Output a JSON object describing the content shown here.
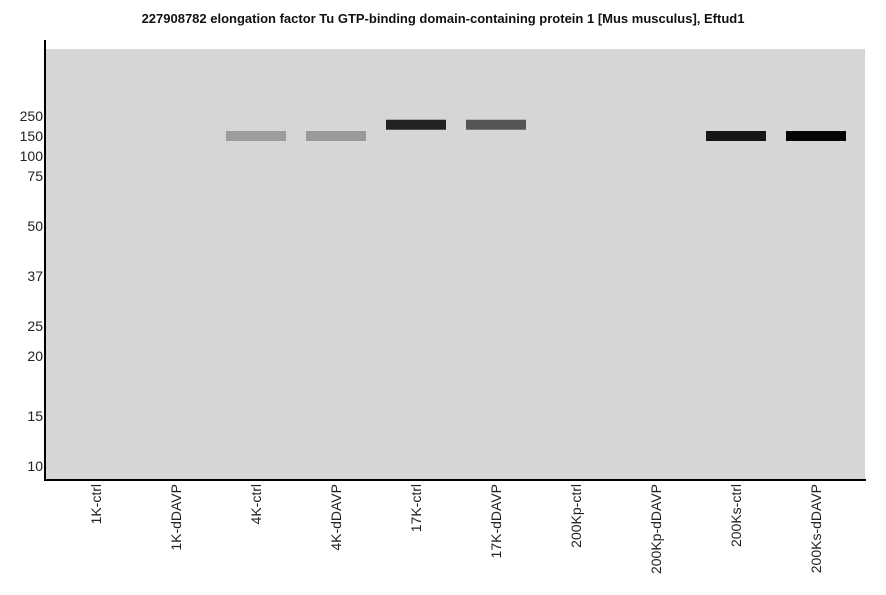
{
  "chart_data": {
    "type": "blot",
    "title": "227908782 elongation factor Tu GTP-binding domain-containing protein 1 [Mus musculus], Eftud1",
    "y_ticks": [
      250,
      150,
      100,
      75,
      50,
      37,
      25,
      20,
      15,
      10
    ],
    "lanes": [
      "1K-ctrl",
      "1K-dDAVP",
      "4K-ctrl",
      "4K-dDAVP",
      "17K-ctrl",
      "17K-dDAVP",
      "200Kp-ctrl",
      "200Kp-dDAVP",
      "200Ks-ctrl",
      "200Ks-dDAVP"
    ],
    "bands": [
      {
        "lane": "4K-ctrl",
        "mw": 150,
        "color": "#9c9c9c"
      },
      {
        "lane": "4K-dDAVP",
        "mw": 150,
        "color": "#999999"
      },
      {
        "lane": "17K-ctrl",
        "mw": 200,
        "color": "#222222"
      },
      {
        "lane": "17K-dDAVP",
        "mw": 200,
        "color": "#555555"
      },
      {
        "lane": "200Ks-ctrl",
        "mw": 150,
        "color": "#151515"
      },
      {
        "lane": "200Ks-dDAVP",
        "mw": 150,
        "color": "#050505"
      }
    ],
    "background_color": "#d6d6d6"
  }
}
